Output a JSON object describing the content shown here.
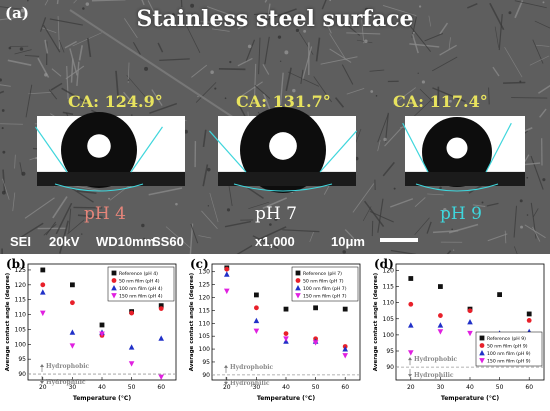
{
  "figure": {
    "panel_a_label": "(a)",
    "title": "Stainless steel surface",
    "sem_info": {
      "mode": "SEI",
      "kv": "20kV",
      "wd": "WD10mm",
      "ss": "SS60",
      "mag": "x1,000",
      "scale": "10μm"
    },
    "droplets": [
      {
        "ca": "CA: 124.9°",
        "ph": "pH 4",
        "ph_color": "#e5857a"
      },
      {
        "ca": "CA: 131.7°",
        "ph": "pH 7",
        "ph_color": "#ffffff"
      },
      {
        "ca": "CA: 117.4°",
        "ph": "pH 9",
        "ph_color": "#3fd6dc"
      }
    ]
  },
  "chart_data": [
    {
      "panel": "(b)",
      "type": "scatter",
      "xlabel": "Temperature (°C)",
      "ylabel": "Average contact angle (degree)",
      "xlim": [
        15,
        65
      ],
      "ylim": [
        88,
        127
      ],
      "xticks": [
        "20",
        "30",
        "40",
        "50",
        "60"
      ],
      "yticks": [
        "90",
        "95",
        "100",
        "105",
        "110",
        "115",
        "120",
        "125"
      ],
      "threshold": {
        "value": 90,
        "above": "Hydrophobic",
        "below": "Hydrophilic"
      },
      "legend_position": "top-right",
      "series": [
        {
          "name": "Reference (pH 4)",
          "color": "#111111",
          "marker": "square",
          "x": [
            20,
            30,
            40,
            50,
            60
          ],
          "y": [
            125,
            120,
            106.5,
            111,
            113
          ]
        },
        {
          "name": "50 nm film (pH 4)",
          "color": "#e8202a",
          "marker": "circle",
          "x": [
            20,
            30,
            40,
            50,
            60
          ],
          "y": [
            120,
            114,
            103,
            110.5,
            112
          ]
        },
        {
          "name": "100 nm film (pH 4)",
          "color": "#2030c8",
          "marker": "triangle",
          "x": [
            20,
            30,
            40,
            50,
            60
          ],
          "y": [
            117.5,
            104,
            104,
            99,
            102
          ]
        },
        {
          "name": "150 nm film (pH 4)",
          "color": "#e020e0",
          "marker": "triangle-down",
          "x": [
            20,
            30,
            40,
            50,
            60
          ],
          "y": [
            110.5,
            99.5,
            103.5,
            93.5,
            89
          ]
        }
      ]
    },
    {
      "panel": "(c)",
      "type": "scatter",
      "xlabel": "Temperature (°C)",
      "ylabel": "Average contact angle (degree)",
      "xlim": [
        15,
        65
      ],
      "ylim": [
        88,
        133
      ],
      "xticks": [
        "20",
        "30",
        "40",
        "50",
        "60"
      ],
      "yticks": [
        "90",
        "95",
        "100",
        "105",
        "110",
        "115",
        "120",
        "125",
        "130"
      ],
      "threshold": {
        "value": 90,
        "above": "Hydrophobic",
        "below": "Hydrophilic"
      },
      "legend_position": "top-right",
      "series": [
        {
          "name": "Reference (pH 7)",
          "color": "#111111",
          "marker": "square",
          "x": [
            20,
            30,
            40,
            50,
            60
          ],
          "y": [
            131.5,
            121,
            115.5,
            116,
            115.5
          ]
        },
        {
          "name": "50 nm film (pH 7)",
          "color": "#e8202a",
          "marker": "circle",
          "x": [
            20,
            30,
            40,
            50,
            60
          ],
          "y": [
            131,
            116,
            106,
            104,
            101
          ]
        },
        {
          "name": "100 nm film (pH 7)",
          "color": "#2030c8",
          "marker": "triangle",
          "x": [
            20,
            30,
            40,
            50,
            60
          ],
          "y": [
            129,
            111,
            103,
            103,
            100
          ]
        },
        {
          "name": "150 nm film (pH 7)",
          "color": "#e020e0",
          "marker": "triangle-down",
          "x": [
            20,
            30,
            40,
            50,
            60
          ],
          "y": [
            122.5,
            107,
            104,
            102.5,
            97.5
          ]
        }
      ]
    },
    {
      "panel": "(d)",
      "type": "scatter",
      "xlabel": "Temperature (°C)",
      "ylabel": "Average contact angle (degree)",
      "xlim": [
        15,
        65
      ],
      "ylim": [
        86,
        122
      ],
      "xticks": [
        "20",
        "30",
        "40",
        "50",
        "60"
      ],
      "yticks": [
        "90",
        "95",
        "100",
        "105",
        "110",
        "115",
        "120"
      ],
      "threshold": {
        "value": 90,
        "above": "Hydrophobic",
        "below": "Hydrophilic"
      },
      "legend_position": "bottom-right",
      "series": [
        {
          "name": "Reference (pH 9)",
          "color": "#111111",
          "marker": "square",
          "x": [
            20,
            30,
            40,
            50,
            60
          ],
          "y": [
            117.5,
            115,
            108,
            112.5,
            106.5
          ]
        },
        {
          "name": "50 nm film (pH 9)",
          "color": "#e8202a",
          "marker": "circle",
          "x": [
            20,
            30,
            40,
            50,
            60
          ],
          "y": [
            109.5,
            106,
            107.5,
            99.5,
            104.5
          ]
        },
        {
          "name": "100 nm film (pH 9)",
          "color": "#2030c8",
          "marker": "triangle",
          "x": [
            20,
            30,
            40,
            50,
            60
          ],
          "y": [
            103,
            103,
            104,
            100.5,
            101
          ]
        },
        {
          "name": "150 nm film (pH 9)",
          "color": "#e020e0",
          "marker": "triangle-down",
          "x": [
            20,
            30,
            40,
            50,
            60
          ],
          "y": [
            94.5,
            101,
            100.5,
            97.5,
            100
          ]
        }
      ]
    }
  ]
}
